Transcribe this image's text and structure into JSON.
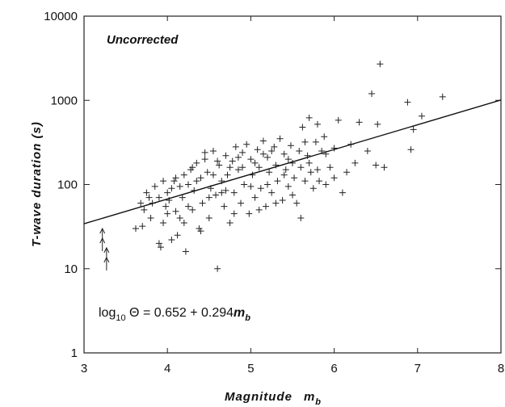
{
  "chart_data": {
    "type": "scatter",
    "xlabel": "Magnitude",
    "xlabel_sub": "b",
    "xlabel_var": "m",
    "ylabel": "T-wave duration (s)",
    "xlim": [
      3,
      8
    ],
    "ylim": [
      1,
      10000
    ],
    "y_scale": "log",
    "grid": false,
    "x_ticks": [
      "3",
      "4",
      "5",
      "6",
      "7",
      "8"
    ],
    "y_ticks": [
      "1",
      "10",
      "100",
      "1000",
      "10000"
    ],
    "annotation_title": "Uncorrected",
    "equation": {
      "prefix": "log",
      "sub": "10",
      "body": " Θ = 0.652 + 0.294",
      "var": "m",
      "var_sub": "b"
    },
    "fit_line": {
      "intercept": 0.652,
      "slope": 0.294
    },
    "upper_limit_arrows": [
      {
        "x": 3.22,
        "y": 22
      },
      {
        "x": 3.27,
        "y": 13
      }
    ],
    "series": [
      {
        "marker": "plus",
        "points": [
          [
            3.62,
            30
          ],
          [
            3.7,
            32
          ],
          [
            3.72,
            50
          ],
          [
            3.75,
            80
          ],
          [
            3.78,
            70
          ],
          [
            3.82,
            60
          ],
          [
            3.85,
            95
          ],
          [
            3.9,
            20
          ],
          [
            3.92,
            18
          ],
          [
            3.95,
            35
          ],
          [
            3.98,
            55
          ],
          [
            4.0,
            80
          ],
          [
            4.02,
            65
          ],
          [
            4.05,
            90
          ],
          [
            4.08,
            110
          ],
          [
            4.1,
            120
          ],
          [
            4.12,
            25
          ],
          [
            4.15,
            40
          ],
          [
            4.18,
            70
          ],
          [
            4.2,
            130
          ],
          [
            4.22,
            16
          ],
          [
            4.25,
            100
          ],
          [
            4.28,
            150
          ],
          [
            4.3,
            50
          ],
          [
            4.32,
            85
          ],
          [
            4.35,
            180
          ],
          [
            4.38,
            30
          ],
          [
            4.4,
            120
          ],
          [
            4.42,
            60
          ],
          [
            4.45,
            200
          ],
          [
            4.48,
            140
          ],
          [
            4.5,
            40
          ],
          [
            4.52,
            90
          ],
          [
            4.55,
            250
          ],
          [
            4.58,
            75
          ],
          [
            4.6,
            10
          ],
          [
            4.62,
            170
          ],
          [
            4.65,
            110
          ],
          [
            4.68,
            55
          ],
          [
            4.7,
            220
          ],
          [
            4.72,
            130
          ],
          [
            4.75,
            35
          ],
          [
            4.78,
            190
          ],
          [
            4.8,
            80
          ],
          [
            4.82,
            280
          ],
          [
            4.85,
            150
          ],
          [
            4.88,
            60
          ],
          [
            4.9,
            240
          ],
          [
            4.92,
            100
          ],
          [
            4.95,
            300
          ],
          [
            4.98,
            45
          ],
          [
            5.0,
            200
          ],
          [
            5.02,
            130
          ],
          [
            5.05,
            70
          ],
          [
            5.08,
            260
          ],
          [
            5.1,
            160
          ],
          [
            5.12,
            90
          ],
          [
            5.15,
            330
          ],
          [
            5.18,
            55
          ],
          [
            5.2,
            210
          ],
          [
            5.22,
            140
          ],
          [
            5.25,
            80
          ],
          [
            5.28,
            280
          ],
          [
            5.3,
            170
          ],
          [
            5.32,
            110
          ],
          [
            5.35,
            350
          ],
          [
            5.38,
            65
          ],
          [
            5.4,
            230
          ],
          [
            5.42,
            150
          ],
          [
            5.45,
            95
          ],
          [
            5.48,
            290
          ],
          [
            5.5,
            180
          ],
          [
            5.52,
            120
          ],
          [
            5.55,
            60
          ],
          [
            5.58,
            250
          ],
          [
            5.6,
            160
          ],
          [
            5.62,
            480
          ],
          [
            5.65,
            110
          ],
          [
            5.68,
            220
          ],
          [
            5.7,
            620
          ],
          [
            5.72,
            140
          ],
          [
            5.75,
            90
          ],
          [
            5.78,
            320
          ],
          [
            5.8,
            520
          ],
          [
            5.82,
            110
          ],
          [
            5.85,
            250
          ],
          [
            5.88,
            370
          ],
          [
            5.9,
            100
          ],
          [
            5.95,
            160
          ],
          [
            6.0,
            270
          ],
          [
            6.05,
            580
          ],
          [
            6.1,
            80
          ],
          [
            6.15,
            140
          ],
          [
            6.2,
            300
          ],
          [
            6.25,
            180
          ],
          [
            6.3,
            550
          ],
          [
            6.4,
            250
          ],
          [
            6.45,
            1200
          ],
          [
            6.5,
            170
          ],
          [
            6.52,
            520
          ],
          [
            6.55,
            2700
          ],
          [
            6.6,
            160
          ],
          [
            6.88,
            950
          ],
          [
            6.92,
            260
          ],
          [
            6.95,
            450
          ],
          [
            7.05,
            650
          ],
          [
            7.3,
            1100
          ],
          [
            3.68,
            60
          ],
          [
            3.8,
            40
          ],
          [
            3.9,
            70
          ],
          [
            4.0,
            45
          ],
          [
            4.05,
            22
          ],
          [
            4.15,
            95
          ],
          [
            4.2,
            35
          ],
          [
            4.3,
            160
          ],
          [
            4.4,
            28
          ],
          [
            4.5,
            70
          ],
          [
            4.55,
            130
          ],
          [
            4.6,
            190
          ],
          [
            4.7,
            85
          ],
          [
            4.8,
            45
          ],
          [
            4.9,
            160
          ],
          [
            5.0,
            95
          ],
          [
            5.1,
            50
          ],
          [
            5.2,
            100
          ],
          [
            5.3,
            60
          ],
          [
            5.4,
            130
          ],
          [
            5.5,
            75
          ],
          [
            5.6,
            40
          ],
          [
            5.7,
            180
          ],
          [
            5.8,
            150
          ],
          [
            5.9,
            230
          ],
          [
            6.0,
            120
          ],
          [
            4.25,
            55
          ],
          [
            4.45,
            240
          ],
          [
            4.65,
            80
          ],
          [
            4.85,
            210
          ],
          [
            5.05,
            180
          ],
          [
            5.25,
            250
          ],
          [
            4.35,
            110
          ],
          [
            4.75,
            160
          ],
          [
            5.15,
            230
          ],
          [
            5.45,
            200
          ],
          [
            5.65,
            320
          ],
          [
            3.95,
            110
          ],
          [
            4.1,
            48
          ]
        ]
      }
    ]
  }
}
